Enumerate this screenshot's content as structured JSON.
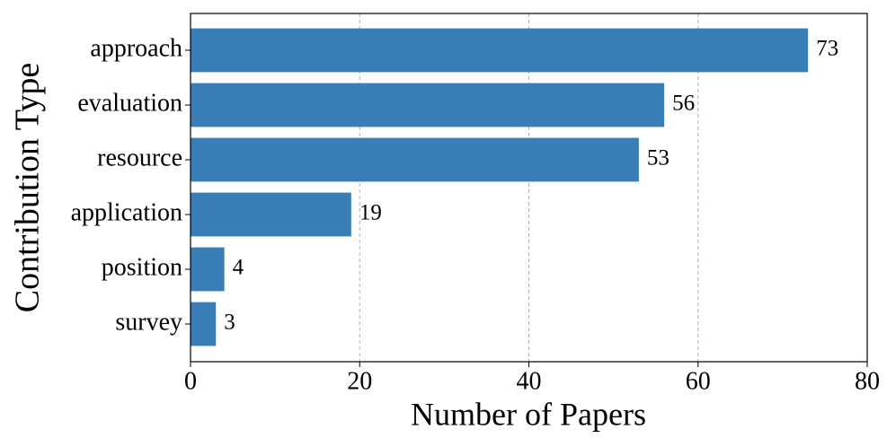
{
  "chart_data": {
    "type": "barh",
    "xlabel": "Number of Papers",
    "ylabel": "Contribution Type",
    "categories": [
      "approach",
      "evaluation",
      "resource",
      "application",
      "position",
      "survey"
    ],
    "values": [
      73,
      56,
      53,
      19,
      4,
      3
    ],
    "color": "#3a7eb8",
    "xlim": [
      0,
      80
    ],
    "xticks": [
      0,
      20,
      40,
      60,
      80
    ],
    "grid": true
  }
}
